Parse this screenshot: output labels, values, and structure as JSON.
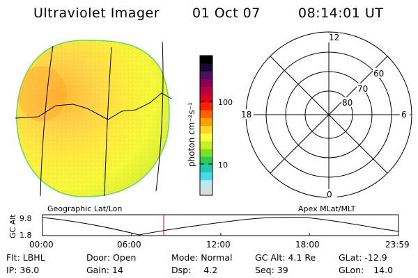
{
  "header": {
    "title": "Ultraviolet Imager",
    "date": "01 Oct 07",
    "time": "08:14:01 UT"
  },
  "colorbar": {
    "unit_label": "photon cm⁻²s⁻¹",
    "tick_labels": [
      "100",
      "10"
    ],
    "colors": [
      "#dcdcdc",
      "#b4ecf0",
      "#4cd8e8",
      "#20c8b0",
      "#28cc50",
      "#7ee020",
      "#c8f020",
      "#ffff40",
      "#ffd820",
      "#ffa000",
      "#ff6000",
      "#ff2000",
      "#e00020",
      "#b80040",
      "#880050",
      "#4c1060",
      "#1c0838",
      "#000000"
    ]
  },
  "polar": {
    "mlt_labels": {
      "top": "12",
      "bottom": "0",
      "left": "18",
      "right": "6"
    },
    "lat_labels": [
      "60",
      "70",
      "80"
    ]
  },
  "image_labels": {
    "left": "Geographic Lat/Lon",
    "right": "Apex MLat/MLT"
  },
  "altitude_plot": {
    "ylabel": "GC Alt",
    "y_ticks": [
      "9.8",
      "1.8"
    ],
    "x_ticks": [
      "00:00",
      "06:00",
      "12:00",
      "18:00",
      "23:59"
    ],
    "marker_color": "#ff0000"
  },
  "info_rows": [
    [
      {
        "label": "Flt:",
        "value": "LBHL"
      },
      {
        "label": "Door:",
        "value": "Open"
      },
      {
        "label": "Mode:",
        "value": "Normal"
      },
      {
        "label": "GC Alt:",
        "value": "4.1 Re"
      },
      {
        "label": "GLat:",
        "value": "-12.9"
      }
    ],
    [
      {
        "label": "IP:",
        "value": "36.0"
      },
      {
        "label": "Gain:",
        "value": "14"
      },
      {
        "label": "Dsp:",
        "value": "4.2"
      },
      {
        "label": "Seq:",
        "value": "39"
      },
      {
        "label": "GLon:",
        "value": "14.0"
      }
    ]
  ]
}
